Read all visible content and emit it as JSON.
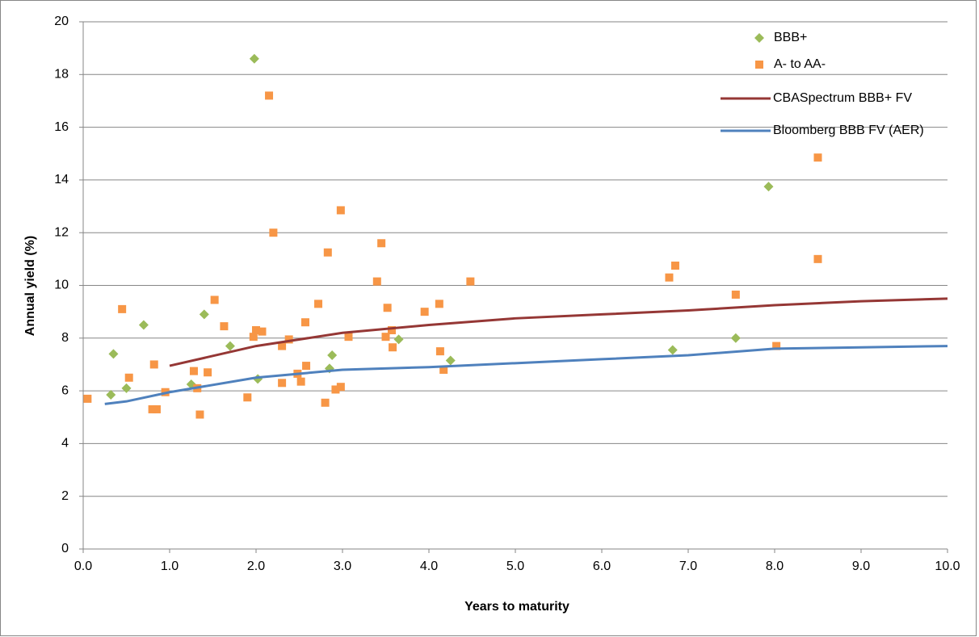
{
  "chart_data": {
    "type": "scatter",
    "x_label": "Years to maturity",
    "y_label": "Annual yield (%)",
    "xlim": [
      0,
      10
    ],
    "ylim": [
      0,
      20
    ],
    "xticks": [
      {
        "value": 0,
        "label": "0.0"
      },
      {
        "value": 1,
        "label": "1.0"
      },
      {
        "value": 2,
        "label": "2.0"
      },
      {
        "value": 3,
        "label": "3.0"
      },
      {
        "value": 4,
        "label": "4.0"
      },
      {
        "value": 5,
        "label": "5.0"
      },
      {
        "value": 6,
        "label": "6.0"
      },
      {
        "value": 7,
        "label": "7.0"
      },
      {
        "value": 8,
        "label": "8.0"
      },
      {
        "value": 9,
        "label": "9.0"
      },
      {
        "value": 10,
        "label": "10.0"
      }
    ],
    "yticks": [
      0,
      2,
      4,
      6,
      8,
      10,
      12,
      14,
      16,
      18,
      20
    ],
    "grid": true,
    "legend": "top-right",
    "series": [
      {
        "name": "BBB+",
        "type": "scatter",
        "marker": "diamond",
        "color": "#9bbb59",
        "x": [
          0.32,
          0.35,
          0.5,
          0.7,
          1.25,
          1.4,
          1.7,
          1.98,
          2.02,
          2.85,
          2.88,
          3.65,
          4.25,
          6.82,
          7.55,
          7.93
        ],
        "values": [
          5.85,
          7.4,
          6.1,
          8.5,
          6.25,
          8.9,
          7.7,
          18.6,
          6.45,
          6.85,
          7.35,
          7.95,
          7.15,
          7.55,
          8.0,
          13.75
        ]
      },
      {
        "name": "A- to AA-",
        "type": "scatter",
        "marker": "square",
        "color": "#f79646",
        "x": [
          0.05,
          0.45,
          0.53,
          0.8,
          0.82,
          0.85,
          0.95,
          1.28,
          1.32,
          1.35,
          1.44,
          1.52,
          1.63,
          1.9,
          1.97,
          2.0,
          2.07,
          2.15,
          2.2,
          2.3,
          2.3,
          2.38,
          2.48,
          2.52,
          2.57,
          2.58,
          2.72,
          2.8,
          2.83,
          2.92,
          2.98,
          2.98,
          3.07,
          3.4,
          3.45,
          3.5,
          3.52,
          3.57,
          3.58,
          3.95,
          4.12,
          4.13,
          4.17,
          4.48,
          6.78,
          6.85,
          7.55,
          8.02,
          8.5,
          8.5
        ],
        "values": [
          5.7,
          9.1,
          6.5,
          5.3,
          7.0,
          5.3,
          5.95,
          6.75,
          6.1,
          5.1,
          6.7,
          9.45,
          8.45,
          5.75,
          8.05,
          8.3,
          8.25,
          17.2,
          12.0,
          7.7,
          6.3,
          7.95,
          6.65,
          6.35,
          8.6,
          6.95,
          9.3,
          5.55,
          11.25,
          6.05,
          6.15,
          12.85,
          8.05,
          10.15,
          11.6,
          8.05,
          9.15,
          8.3,
          7.65,
          9.0,
          9.3,
          7.5,
          6.8,
          10.15,
          10.3,
          10.75,
          9.65,
          7.7,
          14.85,
          11.0
        ]
      },
      {
        "name": "CBASpectrum BBB+ FV",
        "type": "line",
        "color": "#953735",
        "x": [
          1,
          2,
          3,
          4,
          5,
          6,
          7,
          8,
          9,
          10
        ],
        "values": [
          6.95,
          7.7,
          8.2,
          8.5,
          8.75,
          8.9,
          9.05,
          9.25,
          9.4,
          9.5
        ]
      },
      {
        "name": "Bloomberg BBB FV (AER)",
        "type": "line",
        "color": "#4f81bd",
        "x": [
          0.25,
          0.5,
          1,
          2,
          3,
          4,
          5,
          6,
          7,
          8,
          9,
          10
        ],
        "values": [
          5.5,
          5.6,
          5.95,
          6.5,
          6.8,
          6.9,
          7.05,
          7.2,
          7.35,
          7.6,
          7.65,
          7.7
        ]
      }
    ]
  }
}
